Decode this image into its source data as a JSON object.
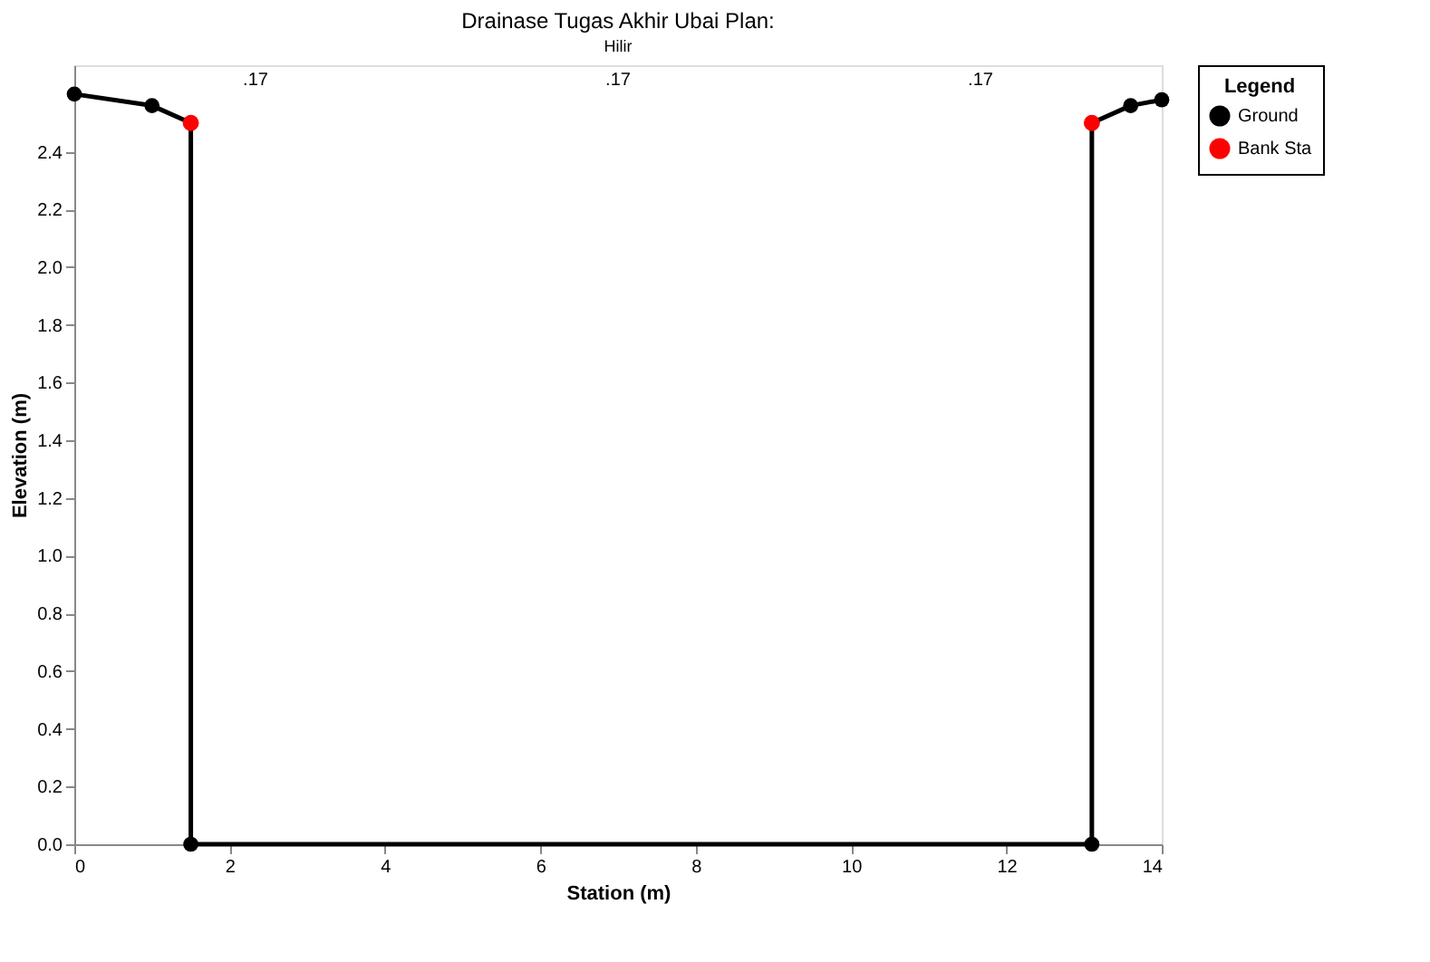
{
  "chart_data": {
    "type": "line",
    "title": "Drainase Tugas Akhir Ubai       Plan:",
    "subtitle": "Hilir",
    "xlabel": "Station (m)",
    "ylabel": "Elevation (m)",
    "legend_title": "Legend",
    "series": [
      {
        "name": "Ground",
        "color": "#000000",
        "marker": "circle",
        "line_style": "solid",
        "x": [
          0,
          1.0,
          1.5,
          1.5,
          13.1,
          13.1,
          13.6,
          14.0
        ],
        "values": [
          2.6,
          2.56,
          2.5,
          0,
          0,
          2.5,
          2.56,
          2.58
        ]
      },
      {
        "name": "Bank Sta",
        "type": "scatter",
        "color": "#ff0000",
        "marker": "circle",
        "x": [
          1.5,
          13.1
        ],
        "values": [
          2.5,
          2.5
        ]
      }
    ],
    "annotations": [
      ".17",
      ".17",
      ".17"
    ],
    "xlim": [
      0,
      14
    ],
    "xticks": [
      0,
      2,
      4,
      6,
      8,
      10,
      12,
      14
    ],
    "ylim": [
      0,
      2.7
    ],
    "yticks": [
      {
        "value": 0,
        "label": "0.0"
      },
      0.2,
      0.4,
      0.6,
      0.8,
      {
        "value": 1,
        "label": "1.0"
      },
      1.2,
      1.4,
      1.6,
      1.8,
      {
        "value": 2,
        "label": "2.0"
      },
      2.2,
      2.4
    ],
    "grid": false,
    "legend": "top right"
  }
}
